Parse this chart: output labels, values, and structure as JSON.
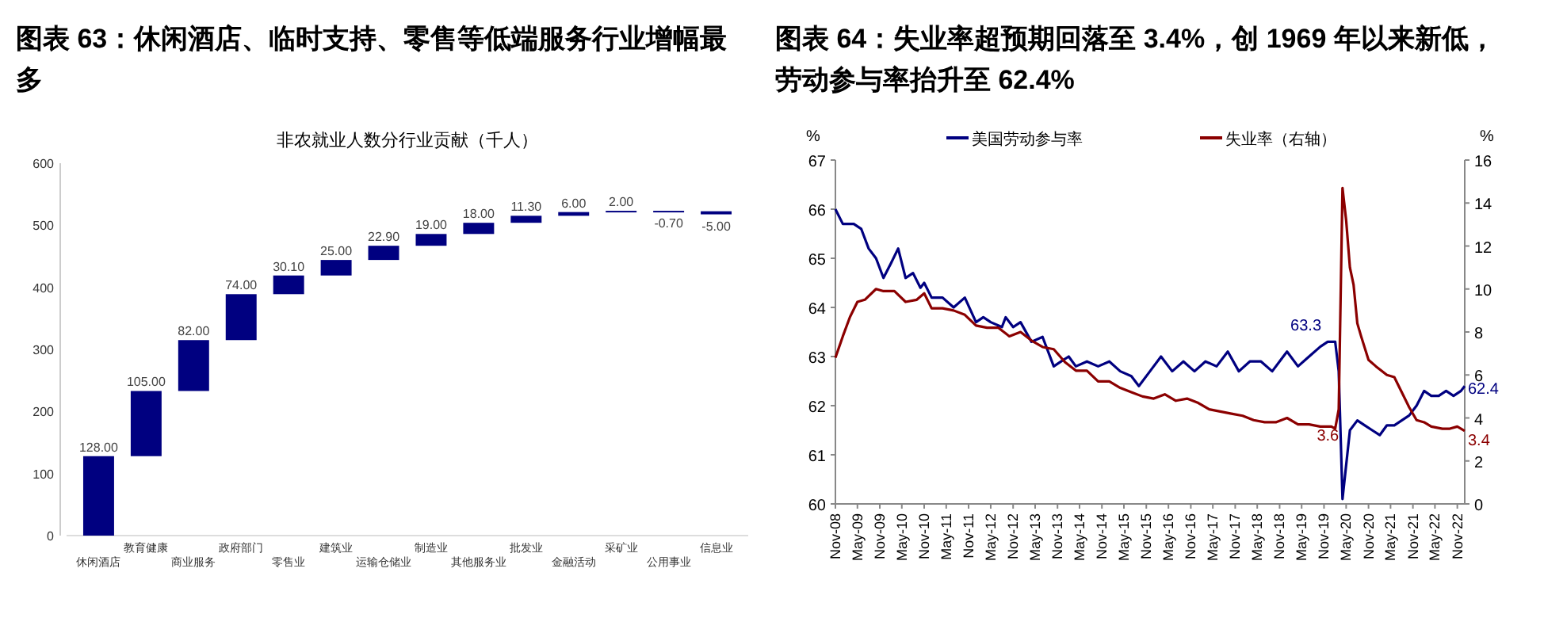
{
  "chart_data": [
    {
      "type": "bar",
      "title": "图表 63：休闲酒店、临时支持、零售等低端服务行业增幅最多",
      "subtitle": "非农就业人数分行业贡献（千人）",
      "categories": [
        "休闲酒店",
        "教育健康",
        "商业服务",
        "政府部门",
        "零售业",
        "建筑业",
        "运输仓储业",
        "制造业",
        "其他服务业",
        "批发业",
        "金融活动",
        "采矿业",
        "公用事业",
        "信息业"
      ],
      "series": [
        {
          "color": "#000080",
          "values": [
            128,
            105,
            82,
            74,
            30.1,
            25,
            22.9,
            19,
            18,
            11.3,
            6,
            2,
            -0.7,
            -5
          ],
          "base": [
            0,
            128,
            233,
            315,
            389,
            419.1,
            444.1,
            467,
            486,
            504,
            515.3,
            521.3,
            523.3,
            522.6
          ],
          "value_labels": [
            "128.00",
            "105.00",
            "82.00",
            "74.00",
            "30.10",
            "25.00",
            "22.90",
            "19.00",
            "18.00",
            "11.30",
            "6.00",
            "2.00",
            "-0.70",
            "-5.00"
          ]
        }
      ],
      "ylim": [
        0,
        600
      ],
      "yticks": [
        0,
        100,
        200,
        300,
        400,
        500,
        600
      ],
      "grid": false
    },
    {
      "type": "line",
      "title": "图表 64：失业率超预期回落至 3.4%，创 1969 年以来新低，劳动参与率抬升至 62.4%",
      "ylabel": "%",
      "y2label": "%",
      "series": [
        {
          "name": "美国劳动参与率",
          "color": "#000080",
          "x": [
            "2008-11",
            "2009-01",
            "2009-04",
            "2009-06",
            "2009-08",
            "2009-10",
            "2009-12",
            "2010-02",
            "2010-04",
            "2010-06",
            "2010-08",
            "2010-10",
            "2010-11",
            "2011-01",
            "2011-04",
            "2011-07",
            "2011-10",
            "2012-01",
            "2012-03",
            "2012-05",
            "2012-08",
            "2012-09",
            "2012-11",
            "2013-01",
            "2013-04",
            "2013-07",
            "2013-10",
            "2013-12",
            "2014-02",
            "2014-04",
            "2014-07",
            "2014-10",
            "2015-01",
            "2015-04",
            "2015-07",
            "2015-09",
            "2015-12",
            "2016-03",
            "2016-06",
            "2016-09",
            "2016-12",
            "2017-03",
            "2017-06",
            "2017-09",
            "2017-12",
            "2018-03",
            "2018-06",
            "2018-09",
            "2018-12",
            "2019-01",
            "2019-04",
            "2019-07",
            "2019-10",
            "2019-12",
            "2020-02",
            "2020-03",
            "2020-04",
            "2020-06",
            "2020-08",
            "2020-10",
            "2020-12",
            "2021-02",
            "2021-04",
            "2021-06",
            "2021-08",
            "2021-10",
            "2021-12",
            "2022-02",
            "2022-04",
            "2022-06",
            "2022-08",
            "2022-10",
            "2022-12",
            "2023-01"
          ],
          "values": [
            66.0,
            65.7,
            65.7,
            65.6,
            65.2,
            65.0,
            64.6,
            64.9,
            65.2,
            64.6,
            64.7,
            64.4,
            64.5,
            64.2,
            64.2,
            64.0,
            64.2,
            63.7,
            63.8,
            63.7,
            63.6,
            63.8,
            63.6,
            63.7,
            63.3,
            63.4,
            62.8,
            62.9,
            63.0,
            62.8,
            62.9,
            62.8,
            62.9,
            62.7,
            62.6,
            62.4,
            62.7,
            63.0,
            62.7,
            62.9,
            62.7,
            62.9,
            62.8,
            63.1,
            62.7,
            62.9,
            62.9,
            62.7,
            63.0,
            63.1,
            62.8,
            63.0,
            63.2,
            63.3,
            63.3,
            62.7,
            60.1,
            61.5,
            61.7,
            61.6,
            61.5,
            61.4,
            61.6,
            61.6,
            61.7,
            61.8,
            62.0,
            62.3,
            62.2,
            62.2,
            62.3,
            62.2,
            62.3,
            62.4
          ]
        },
        {
          "name": "失业率（右轴）",
          "color": "#8b0000",
          "axis": "y2",
          "x": [
            "2008-11",
            "2009-01",
            "2009-03",
            "2009-05",
            "2009-07",
            "2009-10",
            "2009-12",
            "2010-03",
            "2010-06",
            "2010-09",
            "2010-11",
            "2011-01",
            "2011-04",
            "2011-07",
            "2011-10",
            "2012-01",
            "2012-04",
            "2012-07",
            "2012-10",
            "2013-01",
            "2013-04",
            "2013-07",
            "2013-10",
            "2014-01",
            "2014-04",
            "2014-07",
            "2014-10",
            "2015-01",
            "2015-04",
            "2015-07",
            "2015-10",
            "2016-01",
            "2016-04",
            "2016-07",
            "2016-10",
            "2017-01",
            "2017-04",
            "2017-07",
            "2017-10",
            "2018-01",
            "2018-04",
            "2018-07",
            "2018-10",
            "2019-01",
            "2019-04",
            "2019-07",
            "2019-10",
            "2020-01",
            "2020-02",
            "2020-03",
            "2020-04",
            "2020-05",
            "2020-06",
            "2020-07",
            "2020-08",
            "2020-09",
            "2020-11",
            "2021-01",
            "2021-04",
            "2021-06",
            "2021-08",
            "2021-10",
            "2021-12",
            "2022-02",
            "2022-04",
            "2022-07",
            "2022-09",
            "2022-11",
            "2023-01"
          ],
          "values": [
            6.8,
            7.8,
            8.7,
            9.4,
            9.5,
            10.0,
            9.9,
            9.9,
            9.4,
            9.5,
            9.8,
            9.1,
            9.1,
            9.0,
            8.8,
            8.3,
            8.2,
            8.2,
            7.8,
            8.0,
            7.6,
            7.3,
            7.2,
            6.6,
            6.2,
            6.2,
            5.7,
            5.7,
            5.4,
            5.2,
            5.0,
            4.9,
            5.1,
            4.8,
            4.9,
            4.7,
            4.4,
            4.3,
            4.2,
            4.1,
            3.9,
            3.8,
            3.8,
            4.0,
            3.7,
            3.7,
            3.6,
            3.6,
            3.5,
            4.4,
            14.7,
            13.2,
            11.0,
            10.2,
            8.4,
            7.8,
            6.7,
            6.4,
            6.0,
            5.9,
            5.2,
            4.5,
            3.9,
            3.8,
            3.6,
            3.5,
            3.5,
            3.6,
            3.4
          ]
        }
      ],
      "xlim": [
        "2008-11",
        "2023-01"
      ],
      "xticks": [
        {
          "value": "2008-11",
          "label": "Nov-08"
        },
        {
          "value": "2009-05",
          "label": "May-09"
        },
        {
          "value": "2009-11",
          "label": "Nov-09"
        },
        {
          "value": "2010-05",
          "label": "May-10"
        },
        {
          "value": "2010-11",
          "label": "Nov-10"
        },
        {
          "value": "2011-05",
          "label": "May-11"
        },
        {
          "value": "2011-11",
          "label": "Nov-11"
        },
        {
          "value": "2012-05",
          "label": "May-12"
        },
        {
          "value": "2012-11",
          "label": "Nov-12"
        },
        {
          "value": "2013-05",
          "label": "May-13"
        },
        {
          "value": "2013-11",
          "label": "Nov-13"
        },
        {
          "value": "2014-05",
          "label": "May-14"
        },
        {
          "value": "2014-11",
          "label": "Nov-14"
        },
        {
          "value": "2015-05",
          "label": "May-15"
        },
        {
          "value": "2015-11",
          "label": "Nov-15"
        },
        {
          "value": "2016-05",
          "label": "May-16"
        },
        {
          "value": "2016-11",
          "label": "Nov-16"
        },
        {
          "value": "2017-05",
          "label": "May-17"
        },
        {
          "value": "2017-11",
          "label": "Nov-17"
        },
        {
          "value": "2018-05",
          "label": "May-18"
        },
        {
          "value": "2018-11",
          "label": "Nov-18"
        },
        {
          "value": "2019-05",
          "label": "May-19"
        },
        {
          "value": "2019-11",
          "label": "Nov-19"
        },
        {
          "value": "2020-05",
          "label": "May-20"
        },
        {
          "value": "2020-11",
          "label": "Nov-20"
        },
        {
          "value": "2021-05",
          "label": "May-21"
        },
        {
          "value": "2021-11",
          "label": "Nov-21"
        },
        {
          "value": "2022-05",
          "label": "May-22"
        },
        {
          "value": "2022-11",
          "label": "Nov-22"
        }
      ],
      "ylim": [
        60,
        67
      ],
      "yticks": [
        60,
        61,
        62,
        63,
        64,
        65,
        66,
        67
      ],
      "y2lim": [
        0,
        16
      ],
      "y2ticks": [
        0,
        2,
        4,
        6,
        8,
        10,
        12,
        14,
        16
      ],
      "annotations": [
        {
          "text": "63.3",
          "x": "2019-12",
          "y": 63.3
        },
        "3.6",
        {
          "text": "62.4",
          "x": "2023-01",
          "y": 62.4
        },
        "3.4"
      ],
      "grid": false,
      "legend": "top",
      "line_style": "solid",
      "marker": "none"
    }
  ]
}
